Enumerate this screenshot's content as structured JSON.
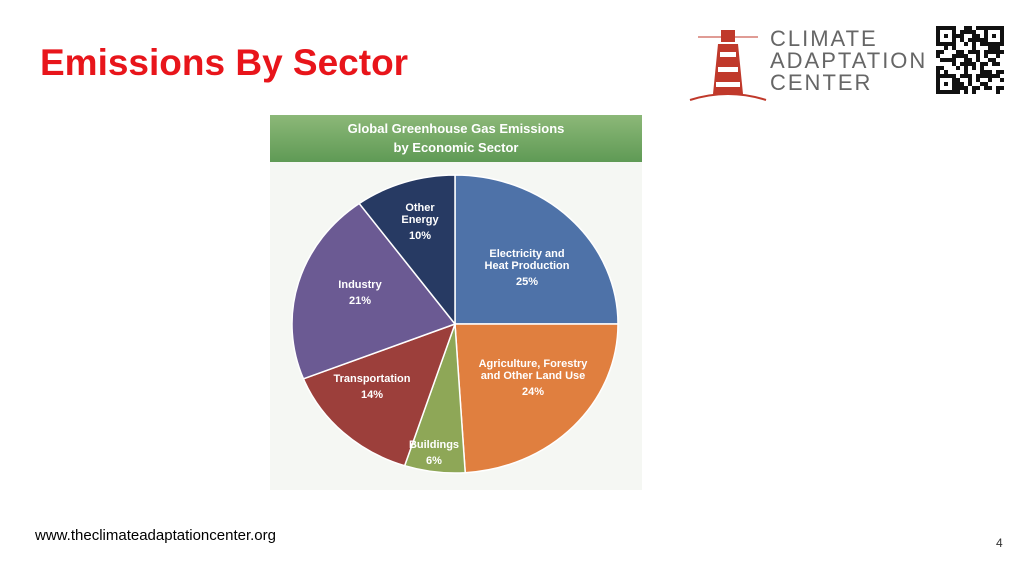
{
  "slide_title": "Emissions By Sector",
  "logo_text": [
    "CLIMATE",
    "ADAPTATION",
    "CENTER"
  ],
  "footer_url": "www.theclimateadaptationcenter.org",
  "page_number": "4",
  "chart_data": {
    "type": "pie",
    "title": "Global Greenhouse Gas Emissions\nby Economic Sector",
    "categories": [
      "Electricity and\nHeat Production",
      "Agriculture, Forestry\nand Other Land Use",
      "Buildings",
      "Transportation",
      "Industry",
      "Other\nEnergy"
    ],
    "values": [
      25,
      24,
      6,
      14,
      21,
      10
    ],
    "value_labels": [
      "25%",
      "24%",
      "6%",
      "14%",
      "21%",
      "10%"
    ],
    "colors": [
      "#4e72a8",
      "#e07f3f",
      "#8ea757",
      "#9c3f3b",
      "#6b5a93",
      "#273a63"
    ]
  }
}
